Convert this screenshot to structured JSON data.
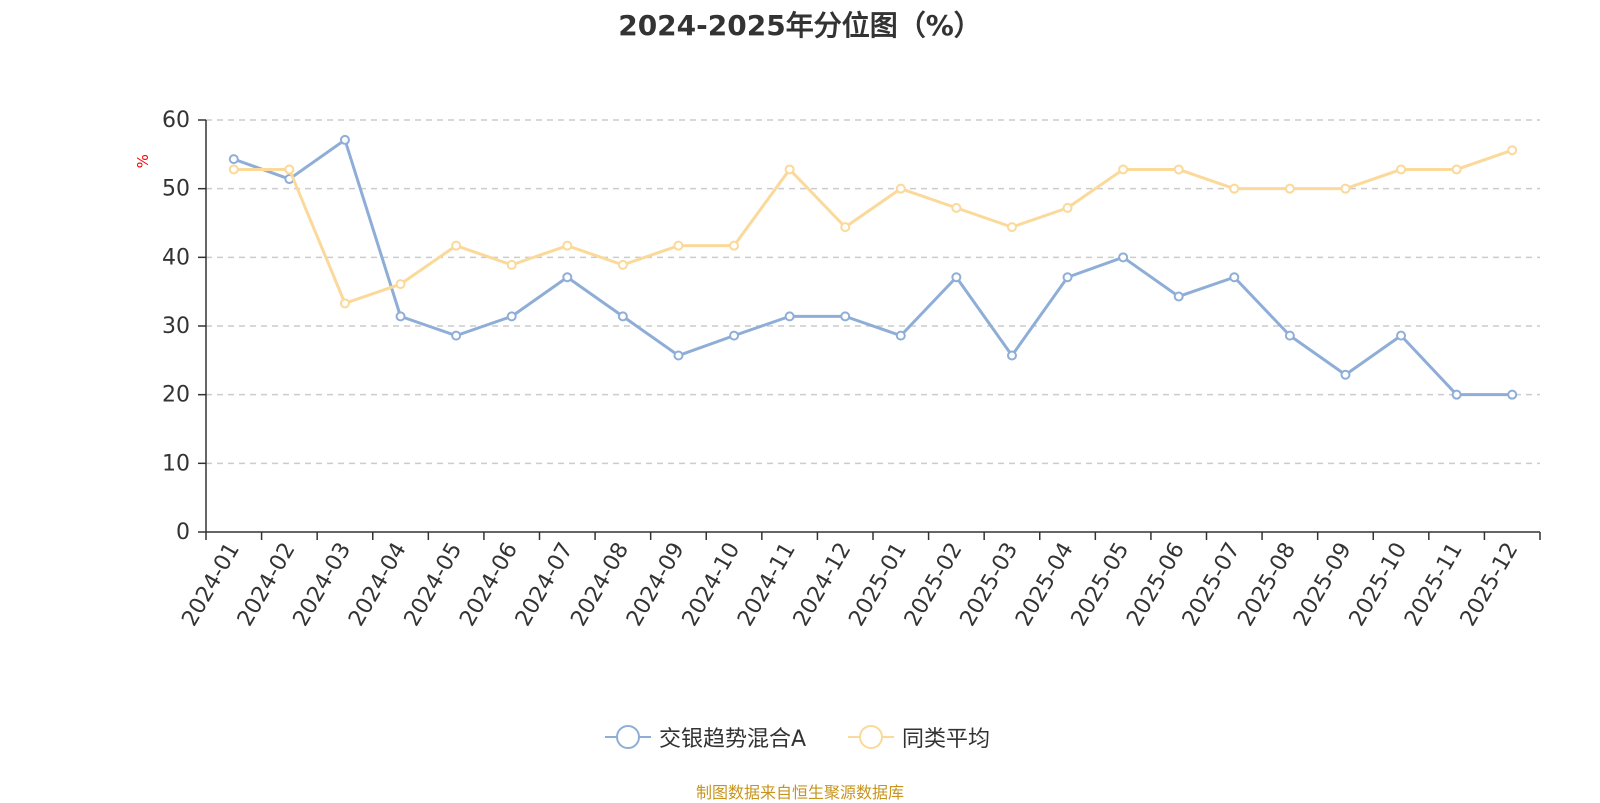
{
  "title": "2024-2025年分位图（%）",
  "source_note": "制图数据来自恒生聚源数据库",
  "colors": {
    "series_a": "#8eaed8",
    "series_b": "#fbd99a",
    "axis": "#333333",
    "grid": "#cccccc",
    "unit_label": "#ff0000",
    "source_note": "#c8951c"
  },
  "chart_data": {
    "type": "line",
    "title": "2024-2025年分位图（%）",
    "ylabel": "%",
    "xlabel": "",
    "ylim": [
      0,
      60
    ],
    "yticks": [
      0,
      10,
      20,
      30,
      40,
      50,
      60
    ],
    "grid": true,
    "legend_position": "bottom",
    "categories": [
      "2024-01",
      "2024-02",
      "2024-03",
      "2024-04",
      "2024-05",
      "2024-06",
      "2024-07",
      "2024-08",
      "2024-09",
      "2024-10",
      "2024-11",
      "2024-12",
      "2025-01",
      "2025-02",
      "2025-03",
      "2025-04",
      "2025-05",
      "2025-06",
      "2025-07",
      "2025-08",
      "2025-09",
      "2025-10",
      "2025-11",
      "2025-12"
    ],
    "series": [
      {
        "name": "交银趋势混合A",
        "color": "#8eaed8",
        "values": [
          54.3,
          51.4,
          57.1,
          31.4,
          28.6,
          31.4,
          37.1,
          31.4,
          25.7,
          28.6,
          31.4,
          31.4,
          28.6,
          37.1,
          25.7,
          37.1,
          40.0,
          34.3,
          37.1,
          28.6,
          22.9,
          28.6,
          20.0,
          20.0
        ]
      },
      {
        "name": "同类平均",
        "color": "#fbd99a",
        "values": [
          52.8,
          52.8,
          33.3,
          36.1,
          41.7,
          38.9,
          41.7,
          38.9,
          41.7,
          41.7,
          52.8,
          44.4,
          50.0,
          47.2,
          44.4,
          47.2,
          52.8,
          52.8,
          50.0,
          50.0,
          50.0,
          52.8,
          52.8,
          55.6
        ]
      }
    ]
  }
}
